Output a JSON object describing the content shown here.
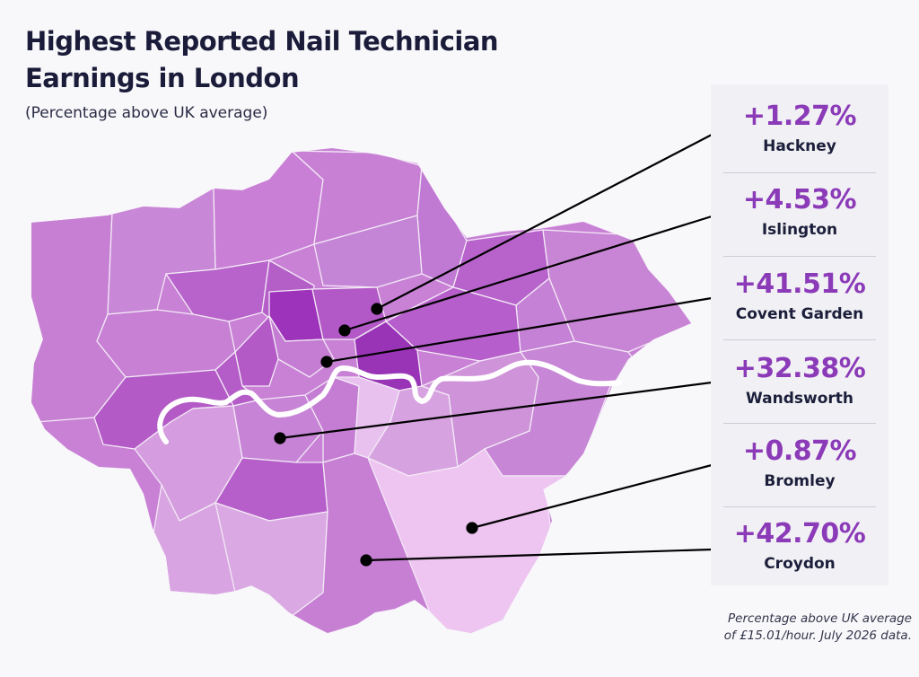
{
  "title": "Highest Reported Nail Technician Earnings in London",
  "subtitle": "(Percentage above UK average)",
  "colors": {
    "accent": "#8b3ab8",
    "boundary": "#f3e9f6",
    "river": "#ffffff"
  },
  "callouts": [
    {
      "value": "+1.27%",
      "label": "Hackney"
    },
    {
      "value": "+4.53%",
      "label": "Islington"
    },
    {
      "value": "+41.51%",
      "label": "Covent Garden"
    },
    {
      "value": "+32.38%",
      "label": "Wandsworth"
    },
    {
      "value": "+0.87%",
      "label": "Bromley"
    },
    {
      "value": "+42.70%",
      "label": "Croydon"
    }
  ],
  "footnote": {
    "line1": "Percentage above UK average",
    "line2": "of £15.01/hour. July 2026 data."
  }
}
